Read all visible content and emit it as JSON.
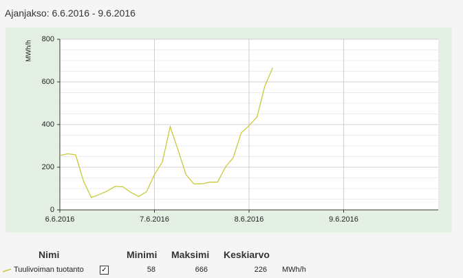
{
  "header": {
    "title": "Ajanjakso: 6.6.2016 - 9.6.2016"
  },
  "chart_data": {
    "type": "line",
    "y_label": "MWh/h",
    "categories": [
      "6.6.2016",
      null,
      null,
      null,
      null,
      null,
      null,
      null,
      null,
      null,
      null,
      null,
      "7.6.2016",
      null,
      null,
      null,
      null,
      null,
      null,
      null,
      null,
      null,
      null,
      null,
      "8.6.2016",
      null,
      null,
      null,
      null,
      null,
      null,
      null,
      null,
      null,
      null,
      null,
      "9.6.2016",
      null,
      null,
      null,
      null,
      null,
      null,
      null,
      null,
      null,
      null,
      null,
      null
    ],
    "series": [
      {
        "name": "Tuulivoiman tuotanto",
        "color": "#c9c93a",
        "values": [
          255,
          263,
          258,
          135,
          58,
          72,
          88,
          110,
          108,
          82,
          63,
          85,
          165,
          225,
          390,
          280,
          165,
          122,
          122,
          130,
          130,
          200,
          245,
          360,
          395,
          435,
          580,
          666,
          null,
          null,
          null,
          null,
          null,
          null,
          null,
          null,
          null,
          null,
          null,
          null,
          null,
          null,
          null,
          null,
          null,
          null,
          null,
          null,
          null
        ]
      }
    ],
    "ylim": [
      0,
      800
    ],
    "yticks": [
      0,
      200,
      400,
      600,
      800
    ],
    "y_minor_ticks": [
      50,
      100,
      150,
      250,
      300,
      350,
      450,
      500,
      550,
      650,
      700,
      750
    ],
    "grid": true
  },
  "summary": {
    "headers": [
      "Nimi",
      "Minimi",
      "Maksimi",
      "Keskiarvo"
    ],
    "min": 58,
    "max": 666,
    "mean": 226,
    "unit": "MWh/h"
  }
}
